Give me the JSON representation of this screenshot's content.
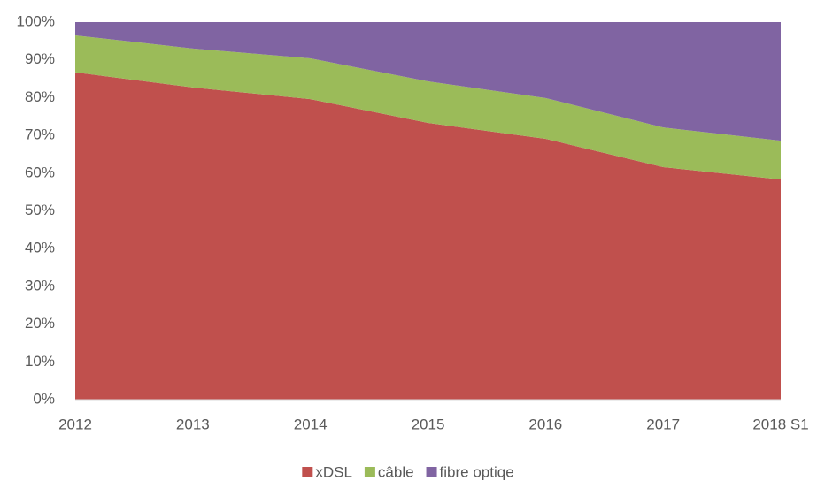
{
  "chart_data": {
    "type": "stacked_area",
    "categories": [
      "2012",
      "2013",
      "2014",
      "2015",
      "2016",
      "2017",
      "2018 S1"
    ],
    "series": [
      {
        "name": "xDSL",
        "color": "#c0504d",
        "values": [
          86.7,
          82.7,
          79.6,
          73.3,
          69.1,
          61.6,
          58.3
        ]
      },
      {
        "name": "câble",
        "color": "#9bbb59",
        "values": [
          9.8,
          10.3,
          10.8,
          11.0,
          10.8,
          10.5,
          10.3
        ]
      },
      {
        "name": "fibre optiqe",
        "color": "#8064a2",
        "values": [
          3.5,
          7.0,
          9.6,
          15.7,
          20.1,
          27.9,
          31.4
        ]
      }
    ],
    "ylim": [
      0,
      100
    ],
    "yticks": [
      {
        "value": 0,
        "label": "0%"
      },
      {
        "value": 10,
        "label": "10%"
      },
      {
        "value": 20,
        "label": "20%"
      },
      {
        "value": 30,
        "label": "30%"
      },
      {
        "value": 40,
        "label": "40%"
      },
      {
        "value": 50,
        "label": "50%"
      },
      {
        "value": 60,
        "label": "60%"
      },
      {
        "value": 70,
        "label": "70%"
      },
      {
        "value": 80,
        "label": "80%"
      },
      {
        "value": 90,
        "label": "90%"
      },
      {
        "value": 100,
        "label": "100%"
      }
    ],
    "legend": "bottom"
  }
}
